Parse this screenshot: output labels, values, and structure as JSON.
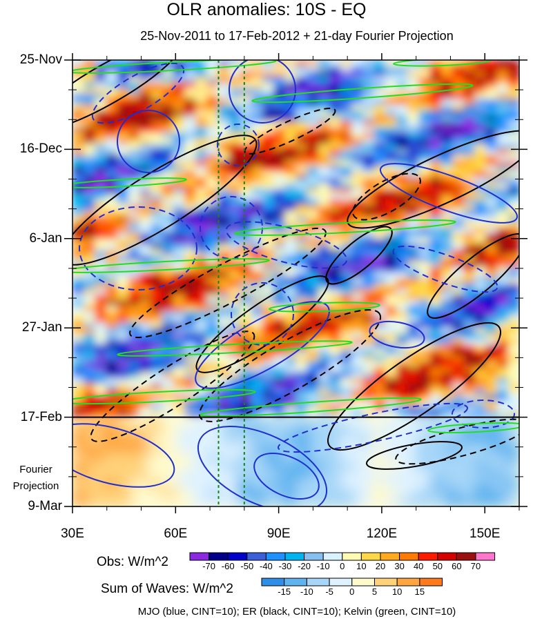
{
  "chart_data": {
    "type": "heatmap",
    "title": "OLR anomalies: 10S - EQ",
    "subtitle": "25-Nov-2011 to 17-Feb-2012 + 21-day Fourier Projection",
    "x_ticks": [
      {
        "value": 30,
        "label": "30E"
      },
      {
        "value": 60,
        "label": "60E"
      },
      {
        "value": 90,
        "label": "90E"
      },
      {
        "value": 120,
        "label": "120E"
      },
      {
        "value": 150,
        "label": "150E"
      }
    ],
    "xlim": [
      30,
      160
    ],
    "y_ticks": [
      {
        "day": 0,
        "label": "25-Nov"
      },
      {
        "day": 21,
        "label": "16-Dec"
      },
      {
        "day": 42,
        "label": "6-Jan"
      },
      {
        "day": 63,
        "label": "27-Jan"
      },
      {
        "day": 84,
        "label": "17-Feb"
      },
      {
        "day": 105,
        "label": "9-Mar"
      }
    ],
    "ylim_days": [
      0,
      105
    ],
    "projection_start_day": 84,
    "projection_label_lines": [
      "Fourier",
      "Projection"
    ],
    "reference_lines_lon": [
      72.5,
      80
    ],
    "legend_obs": {
      "title": "Obs: W/m^2",
      "levels": [
        -70,
        -60,
        -50,
        -40,
        -30,
        -20,
        -10,
        0,
        10,
        20,
        30,
        40,
        50,
        60,
        70
      ],
      "colors": [
        "#8a2be2",
        "#00008b",
        "#0000cd",
        "#3a5fd9",
        "#1e90ff",
        "#00b4ef",
        "#87bff0",
        "#d8f3ff",
        "#fffbb5",
        "#ffd84a",
        "#ffaa1e",
        "#ff7a00",
        "#ff1a00",
        "#d50000",
        "#9c1010",
        "#ff77cc"
      ]
    },
    "legend_waves": {
      "title": "Sum of Waves: W/m^2",
      "levels": [
        -15,
        -10,
        -5,
        0,
        5,
        10,
        15
      ],
      "colors": [
        "#2f8fe8",
        "#5fb4f0",
        "#a6d6f8",
        "#dff2ff",
        "#fffacc",
        "#ffd27a",
        "#ffa640",
        "#ff7a1a"
      ]
    },
    "footer": "MJO (blue, CINT=10); ER (black, CINT=10); Kelvin (green, CINT=10)",
    "series_colors": {
      "MJO": "#1f2ecc",
      "ER": "#000000",
      "Kelvin": "#22dd22"
    }
  }
}
